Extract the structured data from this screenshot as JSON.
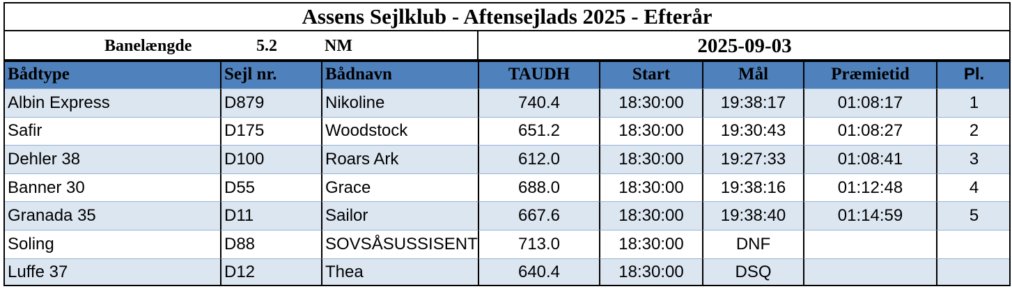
{
  "header": {
    "title": "Assens Sejlklub - Aftensejlads 2025 - Efterår"
  },
  "info": {
    "label": "Banelængde",
    "value": "5.2",
    "unit": "NM",
    "date": "2025-09-03"
  },
  "table": {
    "columns": [
      "Bådtype",
      "Sejl nr.",
      "Bådnavn",
      "TAUDH",
      "Start",
      "Mål",
      "Præmietid",
      "Pl."
    ],
    "rows": [
      [
        "Albin Express",
        "D879",
        "Nikoline",
        "740.4",
        "18:30:00",
        "19:38:17",
        "01:08:17",
        "1"
      ],
      [
        "Safir",
        "D175",
        "Woodstock",
        "651.2",
        "18:30:00",
        "19:30:43",
        "01:08:27",
        "2"
      ],
      [
        "Dehler 38",
        "D100",
        "Roars Ark",
        "612.0",
        "18:30:00",
        "19:27:33",
        "01:08:41",
        "3"
      ],
      [
        "Banner 30",
        "D55",
        "Grace",
        "688.0",
        "18:30:00",
        "19:38:16",
        "01:12:48",
        "4"
      ],
      [
        "Granada 35",
        "D11",
        "Sailor",
        "667.6",
        "18:30:00",
        "19:38:40",
        "01:14:59",
        "5"
      ],
      [
        "Soling",
        "D88",
        "SOVSÅSUSSISENT",
        "713.0",
        "18:30:00",
        "DNF",
        null,
        null
      ],
      [
        "Luffe 37",
        "D12",
        "Thea",
        "640.4",
        "18:30:00",
        "DSQ",
        null,
        null
      ]
    ]
  }
}
